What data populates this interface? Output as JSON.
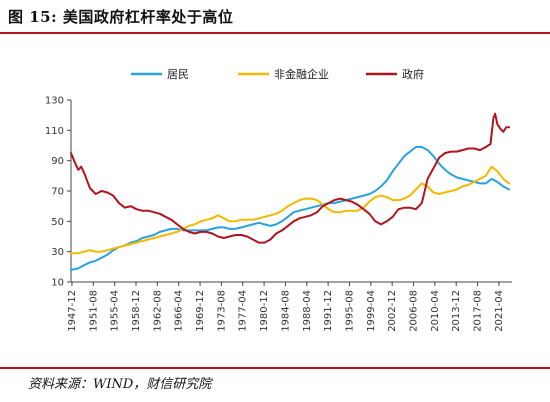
{
  "header": {
    "title": "图 15:  美国政府杠杆率处于高位"
  },
  "footer": {
    "source": "资料来源：WIND，财信研究院"
  },
  "colors": {
    "accent_rule": "#b5121b",
    "series_household": "#29a3e0",
    "series_corporate": "#f5b800",
    "series_government": "#b0141e"
  },
  "chart_data": {
    "type": "line",
    "title": "",
    "xlabel": "",
    "ylabel": "",
    "ylim": [
      10,
      130
    ],
    "yticks": [
      10,
      30,
      50,
      70,
      90,
      110,
      130
    ],
    "xlim": [
      1947.75,
      2023.5
    ],
    "xtick_labels": [
      "1947-12",
      "1951-08",
      "1955-04",
      "1958-12",
      "1962-08",
      "1966-04",
      "1969-12",
      "1973-08",
      "1977-04",
      "1980-12",
      "1984-08",
      "1988-04",
      "1991-12",
      "1995-08",
      "1999-04",
      "2002-12",
      "2006-08",
      "2010-04",
      "2013-12",
      "2017-08",
      "2021-04"
    ],
    "legend_position": "top-center",
    "grid": false,
    "series": [
      {
        "name": "居民",
        "color": "#29a3e0",
        "points": [
          [
            1947.75,
            18
          ],
          [
            1949,
            19
          ],
          [
            1950,
            21
          ],
          [
            1951,
            23
          ],
          [
            1952,
            24
          ],
          [
            1953,
            26
          ],
          [
            1954,
            28
          ],
          [
            1955,
            31
          ],
          [
            1956,
            33
          ],
          [
            1957,
            34
          ],
          [
            1958,
            36
          ],
          [
            1959,
            37
          ],
          [
            1960,
            39
          ],
          [
            1961,
            40
          ],
          [
            1962,
            41
          ],
          [
            1963,
            43
          ],
          [
            1964,
            44
          ],
          [
            1965,
            45
          ],
          [
            1966,
            45
          ],
          [
            1967,
            44
          ],
          [
            1968,
            44
          ],
          [
            1969,
            44
          ],
          [
            1970,
            44
          ],
          [
            1971,
            44
          ],
          [
            1972,
            45
          ],
          [
            1973,
            46
          ],
          [
            1974,
            46
          ],
          [
            1975,
            45
          ],
          [
            1976,
            45
          ],
          [
            1977,
            46
          ],
          [
            1978,
            47
          ],
          [
            1979,
            48
          ],
          [
            1980,
            49
          ],
          [
            1981,
            48
          ],
          [
            1982,
            47
          ],
          [
            1983,
            48
          ],
          [
            1984,
            50
          ],
          [
            1985,
            53
          ],
          [
            1986,
            56
          ],
          [
            1987,
            57
          ],
          [
            1988,
            58
          ],
          [
            1989,
            59
          ],
          [
            1990,
            60
          ],
          [
            1991,
            61
          ],
          [
            1992,
            62
          ],
          [
            1993,
            62
          ],
          [
            1994,
            63
          ],
          [
            1995,
            64
          ],
          [
            1996,
            65
          ],
          [
            1997,
            66
          ],
          [
            1998,
            67
          ],
          [
            1999,
            68
          ],
          [
            2000,
            70
          ],
          [
            2001,
            73
          ],
          [
            2002,
            77
          ],
          [
            2003,
            83
          ],
          [
            2004,
            88
          ],
          [
            2005,
            93
          ],
          [
            2006,
            96
          ],
          [
            2007,
            99
          ],
          [
            2008,
            99
          ],
          [
            2009,
            97
          ],
          [
            2010,
            93
          ],
          [
            2011,
            88
          ],
          [
            2012,
            84
          ],
          [
            2013,
            81
          ],
          [
            2014,
            79
          ],
          [
            2015,
            78
          ],
          [
            2016,
            77
          ],
          [
            2017,
            76
          ],
          [
            2018,
            75
          ],
          [
            2019,
            75
          ],
          [
            2020,
            78
          ],
          [
            2021,
            76
          ],
          [
            2022,
            73
          ],
          [
            2023,
            71
          ]
        ]
      },
      {
        "name": "非金融企业",
        "color": "#f5b800",
        "points": [
          [
            1947.75,
            29
          ],
          [
            1949,
            29
          ],
          [
            1950,
            30
          ],
          [
            1951,
            31
          ],
          [
            1952,
            30
          ],
          [
            1953,
            30
          ],
          [
            1954,
            31
          ],
          [
            1955,
            32
          ],
          [
            1956,
            33
          ],
          [
            1957,
            34
          ],
          [
            1958,
            35
          ],
          [
            1959,
            36
          ],
          [
            1960,
            37
          ],
          [
            1961,
            38
          ],
          [
            1962,
            39
          ],
          [
            1963,
            40
          ],
          [
            1964,
            41
          ],
          [
            1965,
            42
          ],
          [
            1966,
            43
          ],
          [
            1967,
            45
          ],
          [
            1968,
            47
          ],
          [
            1969,
            48
          ],
          [
            1970,
            50
          ],
          [
            1971,
            51
          ],
          [
            1972,
            52
          ],
          [
            1973,
            54
          ],
          [
            1974,
            52
          ],
          [
            1975,
            50
          ],
          [
            1976,
            50
          ],
          [
            1977,
            51
          ],
          [
            1978,
            51
          ],
          [
            1979,
            51
          ],
          [
            1980,
            52
          ],
          [
            1981,
            53
          ],
          [
            1982,
            54
          ],
          [
            1983,
            55
          ],
          [
            1984,
            57
          ],
          [
            1985,
            60
          ],
          [
            1986,
            62
          ],
          [
            1987,
            64
          ],
          [
            1988,
            65
          ],
          [
            1989,
            65
          ],
          [
            1990,
            64
          ],
          [
            1991,
            61
          ],
          [
            1992,
            58
          ],
          [
            1993,
            56
          ],
          [
            1994,
            56
          ],
          [
            1995,
            57
          ],
          [
            1996,
            57
          ],
          [
            1997,
            57
          ],
          [
            1998,
            59
          ],
          [
            1999,
            63
          ],
          [
            2000,
            66
          ],
          [
            2001,
            67
          ],
          [
            2002,
            66
          ],
          [
            2003,
            64
          ],
          [
            2004,
            64
          ],
          [
            2005,
            65
          ],
          [
            2006,
            67
          ],
          [
            2007,
            71
          ],
          [
            2008,
            75
          ],
          [
            2009,
            73
          ],
          [
            2010,
            69
          ],
          [
            2011,
            68
          ],
          [
            2012,
            69
          ],
          [
            2013,
            70
          ],
          [
            2014,
            71
          ],
          [
            2015,
            73
          ],
          [
            2016,
            74
          ],
          [
            2017,
            76
          ],
          [
            2018,
            78
          ],
          [
            2019,
            80
          ],
          [
            2020,
            86
          ],
          [
            2021,
            83
          ],
          [
            2022,
            78
          ],
          [
            2023,
            75
          ]
        ]
      },
      {
        "name": "政府",
        "color": "#b0141e",
        "points": [
          [
            1947.75,
            95
          ],
          [
            1948.5,
            88
          ],
          [
            1949,
            84
          ],
          [
            1949.5,
            86
          ],
          [
            1950,
            82
          ],
          [
            1951,
            72
          ],
          [
            1952,
            68
          ],
          [
            1953,
            70
          ],
          [
            1954,
            69
          ],
          [
            1955,
            67
          ],
          [
            1956,
            62
          ],
          [
            1957,
            59
          ],
          [
            1958,
            60
          ],
          [
            1959,
            58
          ],
          [
            1960,
            57
          ],
          [
            1961,
            57
          ],
          [
            1962,
            56
          ],
          [
            1963,
            55
          ],
          [
            1964,
            53
          ],
          [
            1965,
            51
          ],
          [
            1966,
            48
          ],
          [
            1967,
            45
          ],
          [
            1968,
            43
          ],
          [
            1969,
            42
          ],
          [
            1970,
            43
          ],
          [
            1971,
            43
          ],
          [
            1972,
            42
          ],
          [
            1973,
            40
          ],
          [
            1974,
            39
          ],
          [
            1975,
            40
          ],
          [
            1976,
            41
          ],
          [
            1977,
            41
          ],
          [
            1978,
            40
          ],
          [
            1979,
            38
          ],
          [
            1980,
            36
          ],
          [
            1981,
            36
          ],
          [
            1982,
            38
          ],
          [
            1983,
            42
          ],
          [
            1984,
            44
          ],
          [
            1985,
            47
          ],
          [
            1986,
            50
          ],
          [
            1987,
            52
          ],
          [
            1988,
            53
          ],
          [
            1989,
            54
          ],
          [
            1990,
            56
          ],
          [
            1991,
            60
          ],
          [
            1992,
            62
          ],
          [
            1993,
            64
          ],
          [
            1994,
            65
          ],
          [
            1995,
            64
          ],
          [
            1996,
            63
          ],
          [
            1997,
            61
          ],
          [
            1998,
            58
          ],
          [
            1999,
            55
          ],
          [
            2000,
            50
          ],
          [
            2001,
            48
          ],
          [
            2002,
            50
          ],
          [
            2003,
            53
          ],
          [
            2004,
            58
          ],
          [
            2005,
            59
          ],
          [
            2006,
            59
          ],
          [
            2007,
            58
          ],
          [
            2008,
            62
          ],
          [
            2009,
            78
          ],
          [
            2010,
            85
          ],
          [
            2011,
            92
          ],
          [
            2012,
            95
          ],
          [
            2013,
            96
          ],
          [
            2014,
            96
          ],
          [
            2015,
            97
          ],
          [
            2016,
            98
          ],
          [
            2017,
            98
          ],
          [
            2018,
            97
          ],
          [
            2019,
            99
          ],
          [
            2019.8,
            101
          ],
          [
            2020.3,
            118
          ],
          [
            2020.6,
            121
          ],
          [
            2021,
            114
          ],
          [
            2021.5,
            111
          ],
          [
            2022,
            109
          ],
          [
            2022.5,
            112
          ],
          [
            2023,
            112
          ]
        ]
      }
    ]
  }
}
